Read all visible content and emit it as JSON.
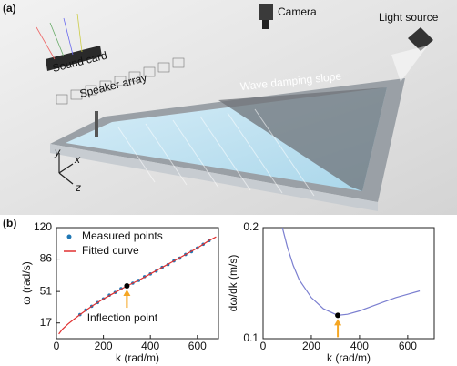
{
  "panel_labels": [
    "(a)",
    "(b)"
  ],
  "illustration": {
    "labels": [
      "Camera",
      "Light source",
      "Sound card",
      "Speaker array",
      "Wave damping slope"
    ],
    "axes": [
      "y",
      "x",
      "z"
    ]
  },
  "chart_data": [
    {
      "type": "line",
      "xlabel": "k (rad/m)",
      "ylabel": "ω (rad/s)",
      "xlim": [
        0,
        690
      ],
      "ylim": [
        0,
        120
      ],
      "xticks": [
        0,
        200,
        400,
        600
      ],
      "yticks": [
        17,
        51,
        86,
        120
      ],
      "legend": "upper left",
      "series": [
        {
          "name": "Measured points",
          "color": "#1f77b4",
          "style": "scatter",
          "x": [
            100,
            125,
            150,
            175,
            200,
            225,
            250,
            275,
            300,
            325,
            350,
            375,
            400,
            425,
            450,
            475,
            500,
            525,
            550,
            575,
            600,
            625,
            650
          ],
          "values": [
            26,
            31,
            35,
            39,
            43,
            47,
            50,
            54,
            57,
            60,
            63,
            67,
            70,
            73,
            77,
            80,
            84,
            87,
            91,
            94,
            98,
            102,
            106
          ]
        },
        {
          "name": "Fitted curve",
          "color": "#e03030",
          "style": "line",
          "x": [
            10,
            25,
            50,
            75,
            100,
            150,
            200,
            250,
            300,
            350,
            400,
            450,
            500,
            550,
            600,
            650,
            680
          ],
          "values": [
            5,
            10,
            16,
            21,
            26,
            35,
            43,
            50,
            57,
            63,
            70,
            77,
            84,
            91,
            98,
            106,
            110
          ]
        }
      ],
      "highlight": {
        "x": 300,
        "y": 57,
        "color": "#000000"
      },
      "annotation": {
        "text": "Inflection point",
        "color": "#f5a623"
      }
    },
    {
      "type": "line",
      "xlabel": "k (rad/m)",
      "ylabel": "dω/dk (m/s)",
      "xlim": [
        0,
        710
      ],
      "ylim": [
        0.1,
        0.2
      ],
      "xticks": [
        0,
        200,
        400,
        600
      ],
      "yticks": [
        0.1,
        0.2
      ],
      "series": [
        {
          "color": "#7b7fd0",
          "style": "line",
          "x": [
            80,
            100,
            125,
            150,
            200,
            250,
            300,
            310,
            350,
            400,
            450,
            500,
            550,
            600,
            650
          ],
          "values": [
            0.2,
            0.183,
            0.166,
            0.153,
            0.137,
            0.127,
            0.122,
            0.121,
            0.122,
            0.125,
            0.129,
            0.133,
            0.137,
            0.14,
            0.143
          ]
        }
      ],
      "highlight": {
        "x": 310,
        "y": 0.121,
        "color": "#000000"
      },
      "annotation": {
        "color": "#f5a623"
      }
    }
  ]
}
